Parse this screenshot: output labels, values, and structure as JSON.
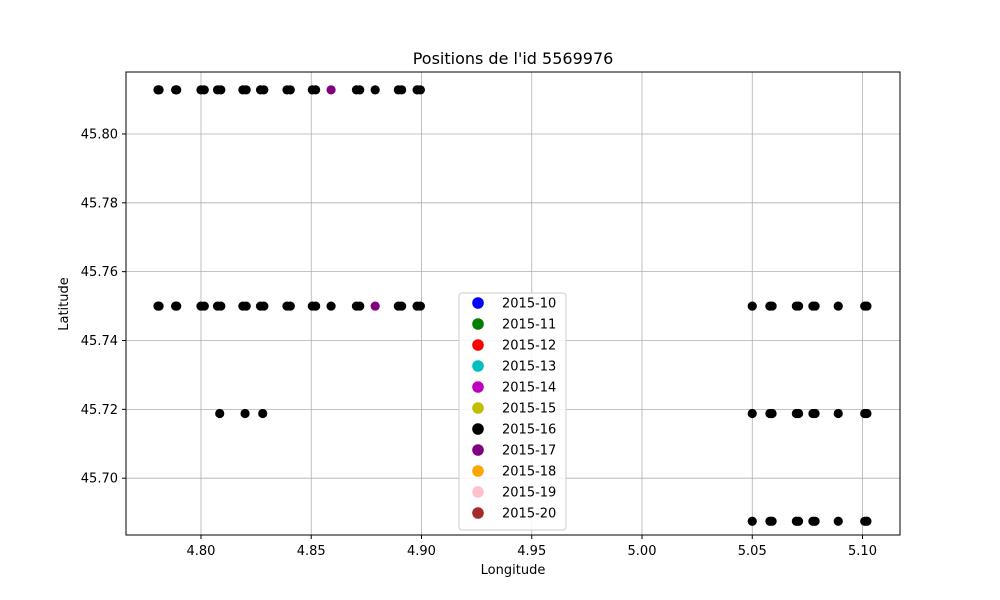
{
  "chart_data": {
    "type": "scatter",
    "title": "Positions de l'id 5569976",
    "xlabel": "Longitude",
    "ylabel": "Latitude",
    "xlim": [
      4.766,
      5.117
    ],
    "ylim": [
      45.6835,
      45.818
    ],
    "xticks": [
      4.8,
      4.85,
      4.9,
      4.95,
      5.0,
      5.05,
      5.1
    ],
    "xtick_labels": [
      "4.80",
      "4.85",
      "4.90",
      "4.95",
      "5.00",
      "5.05",
      "5.10"
    ],
    "yticks": [
      45.7,
      45.72,
      45.74,
      45.76,
      45.78,
      45.8
    ],
    "ytick_labels": [
      "45.70",
      "45.72",
      "45.74",
      "45.76",
      "45.78",
      "45.80"
    ],
    "grid": true,
    "legend_position": "lower-center",
    "series": [
      {
        "name": "2015-10",
        "color": "#0000ff",
        "points": []
      },
      {
        "name": "2015-11",
        "color": "#008000",
        "points": []
      },
      {
        "name": "2015-12",
        "color": "#ff0000",
        "points": []
      },
      {
        "name": "2015-13",
        "color": "#00bfbf",
        "points": []
      },
      {
        "name": "2015-14",
        "color": "#bf00bf",
        "points": []
      },
      {
        "name": "2015-15",
        "color": "#bfbf00",
        "points": []
      },
      {
        "name": "2015-16",
        "color": "#000000",
        "points": [
          [
            4.7805,
            45.8128
          ],
          [
            4.781,
            45.8128
          ],
          [
            4.7885,
            45.8128
          ],
          [
            4.789,
            45.8128
          ],
          [
            4.8,
            45.8128
          ],
          [
            4.8015,
            45.8128
          ],
          [
            4.8075,
            45.8128
          ],
          [
            4.809,
            45.8128
          ],
          [
            4.819,
            45.8128
          ],
          [
            4.8205,
            45.8128
          ],
          [
            4.827,
            45.8128
          ],
          [
            4.8285,
            45.8128
          ],
          [
            4.839,
            45.8128
          ],
          [
            4.8405,
            45.8128
          ],
          [
            4.8505,
            45.8128
          ],
          [
            4.852,
            45.8128
          ],
          [
            4.8705,
            45.8128
          ],
          [
            4.872,
            45.8128
          ],
          [
            4.879,
            45.8128
          ],
          [
            4.8895,
            45.8128
          ],
          [
            4.891,
            45.8128
          ],
          [
            4.898,
            45.8128
          ],
          [
            4.8995,
            45.8128
          ],
          [
            4.7805,
            45.75
          ],
          [
            4.781,
            45.75
          ],
          [
            4.7885,
            45.75
          ],
          [
            4.789,
            45.75
          ],
          [
            4.8,
            45.75
          ],
          [
            4.8015,
            45.75
          ],
          [
            4.8075,
            45.75
          ],
          [
            4.809,
            45.75
          ],
          [
            4.819,
            45.75
          ],
          [
            4.8205,
            45.75
          ],
          [
            4.827,
            45.75
          ],
          [
            4.8285,
            45.75
          ],
          [
            4.839,
            45.75
          ],
          [
            4.8405,
            45.75
          ],
          [
            4.8505,
            45.75
          ],
          [
            4.852,
            45.75
          ],
          [
            4.859,
            45.75
          ],
          [
            4.8705,
            45.75
          ],
          [
            4.872,
            45.75
          ],
          [
            4.8895,
            45.75
          ],
          [
            4.891,
            45.75
          ],
          [
            4.898,
            45.75
          ],
          [
            4.8995,
            45.75
          ],
          [
            4.8085,
            45.7188
          ],
          [
            4.82,
            45.7188
          ],
          [
            4.828,
            45.7188
          ],
          [
            5.05,
            45.75
          ],
          [
            5.058,
            45.75
          ],
          [
            5.059,
            45.75
          ],
          [
            5.07,
            45.75
          ],
          [
            5.071,
            45.75
          ],
          [
            5.0775,
            45.75
          ],
          [
            5.0785,
            45.75
          ],
          [
            5.089,
            45.75
          ],
          [
            5.101,
            45.75
          ],
          [
            5.102,
            45.75
          ],
          [
            5.05,
            45.7188
          ],
          [
            5.058,
            45.7188
          ],
          [
            5.059,
            45.7188
          ],
          [
            5.07,
            45.7188
          ],
          [
            5.071,
            45.7188
          ],
          [
            5.0775,
            45.7188
          ],
          [
            5.0785,
            45.7188
          ],
          [
            5.089,
            45.7188
          ],
          [
            5.101,
            45.7188
          ],
          [
            5.102,
            45.7188
          ],
          [
            5.05,
            45.6875
          ],
          [
            5.058,
            45.6875
          ],
          [
            5.059,
            45.6875
          ],
          [
            5.07,
            45.6875
          ],
          [
            5.071,
            45.6875
          ],
          [
            5.0775,
            45.6875
          ],
          [
            5.0785,
            45.6875
          ],
          [
            5.089,
            45.6875
          ],
          [
            5.101,
            45.6875
          ],
          [
            5.102,
            45.6875
          ]
        ]
      },
      {
        "name": "2015-17",
        "color": "#800080",
        "points": [
          [
            4.859,
            45.8128
          ],
          [
            4.879,
            45.75
          ]
        ]
      },
      {
        "name": "2015-18",
        "color": "#ffa500",
        "points": []
      },
      {
        "name": "2015-19",
        "color": "#ffc0cb",
        "points": []
      },
      {
        "name": "2015-20",
        "color": "#a52a2a",
        "points": []
      }
    ]
  }
}
